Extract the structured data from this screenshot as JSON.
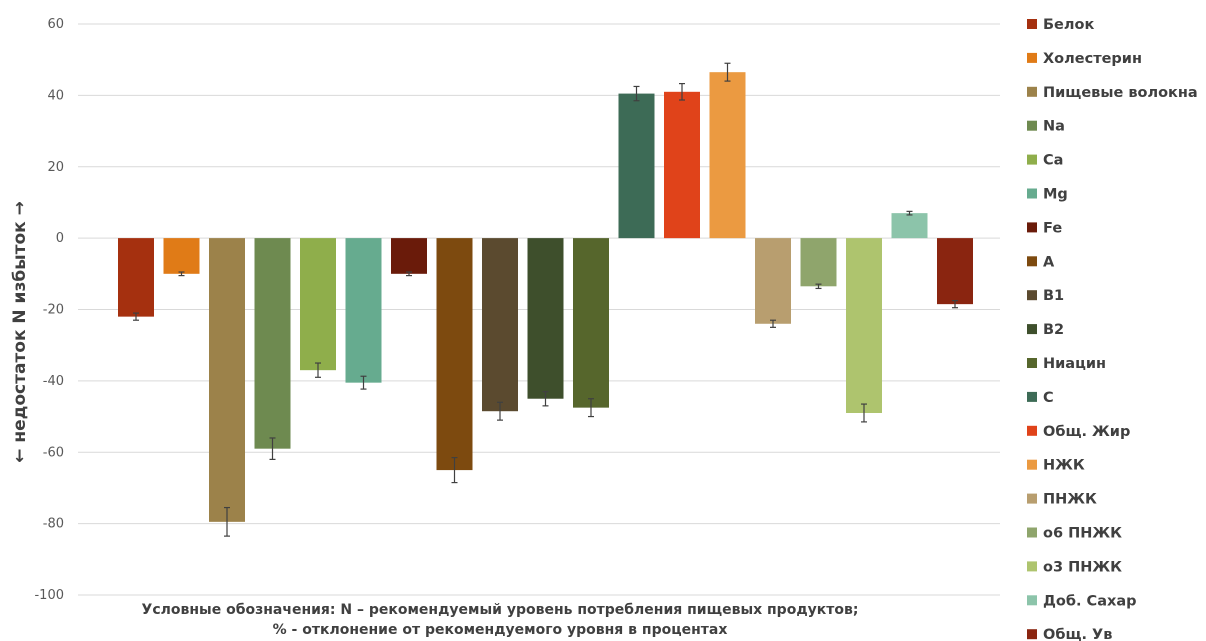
{
  "chart_data": {
    "type": "bar",
    "ylim": [
      -100,
      60
    ],
    "yticks": [
      60,
      40,
      20,
      0,
      -20,
      -40,
      -60,
      -80,
      -100
    ],
    "grid": true,
    "legend_position": "right",
    "ylabel": "← недостаток   N   избыток →",
    "series": [
      {
        "name": "Белок",
        "value": -22,
        "error": 1,
        "color": "#A5300F"
      },
      {
        "name": "Холестерин",
        "value": -10,
        "error": 0.5,
        "color": "#E07B17"
      },
      {
        "name": "Пищевые волокна",
        "value": -79.5,
        "error": 4,
        "color": "#9C824A"
      },
      {
        "name": "Na",
        "value": -59,
        "error": 3,
        "color": "#6E8A50"
      },
      {
        "name": "Ca",
        "value": -37,
        "error": 2,
        "color": "#8FAE4B"
      },
      {
        "name": "Mg",
        "value": -40.5,
        "error": 1.8,
        "color": "#66AB8F"
      },
      {
        "name": "Fe",
        "value": -10,
        "error": 0.5,
        "color": "#6A1B0A"
      },
      {
        "name": "A",
        "value": -65,
        "error": 3.5,
        "color": "#7D4A0F"
      },
      {
        "name": "B1",
        "value": -48.5,
        "error": 2.5,
        "color": "#5B4A2F"
      },
      {
        "name": "B2",
        "value": -45,
        "error": 2,
        "color": "#3E4F2C"
      },
      {
        "name": "Ниацин",
        "value": -47.5,
        "error": 2.5,
        "color": "#56662C"
      },
      {
        "name": "C",
        "value": 40.5,
        "error": 2,
        "color": "#3D6B56"
      },
      {
        "name": "Общ. Жир",
        "value": 41,
        "error": 2.3,
        "color": "#E0431A"
      },
      {
        "name": "НЖК",
        "value": 46.5,
        "error": 2.5,
        "color": "#EB9A41"
      },
      {
        "name": "ПНЖК",
        "value": -24,
        "error": 1,
        "color": "#B89E6F"
      },
      {
        "name": "о6 ПНЖК",
        "value": -13.5,
        "error": 0.6,
        "color": "#8FA56C"
      },
      {
        "name": "о3 ПНЖК",
        "value": -49,
        "error": 2.5,
        "color": "#AEC46E"
      },
      {
        "name": "Доб. Сахар",
        "value": 7,
        "error": 0.5,
        "color": "#8CC4AA"
      },
      {
        "name": "Общ. Ув",
        "value": -18.5,
        "error": 1,
        "color": "#8A2510"
      }
    ]
  },
  "caption": {
    "line1": "Условные обозначения: N – рекомендуемый уровень потребления пищевых продуктов;",
    "line2": "% - отклонение от рекомендуемого уровня в процентах"
  }
}
